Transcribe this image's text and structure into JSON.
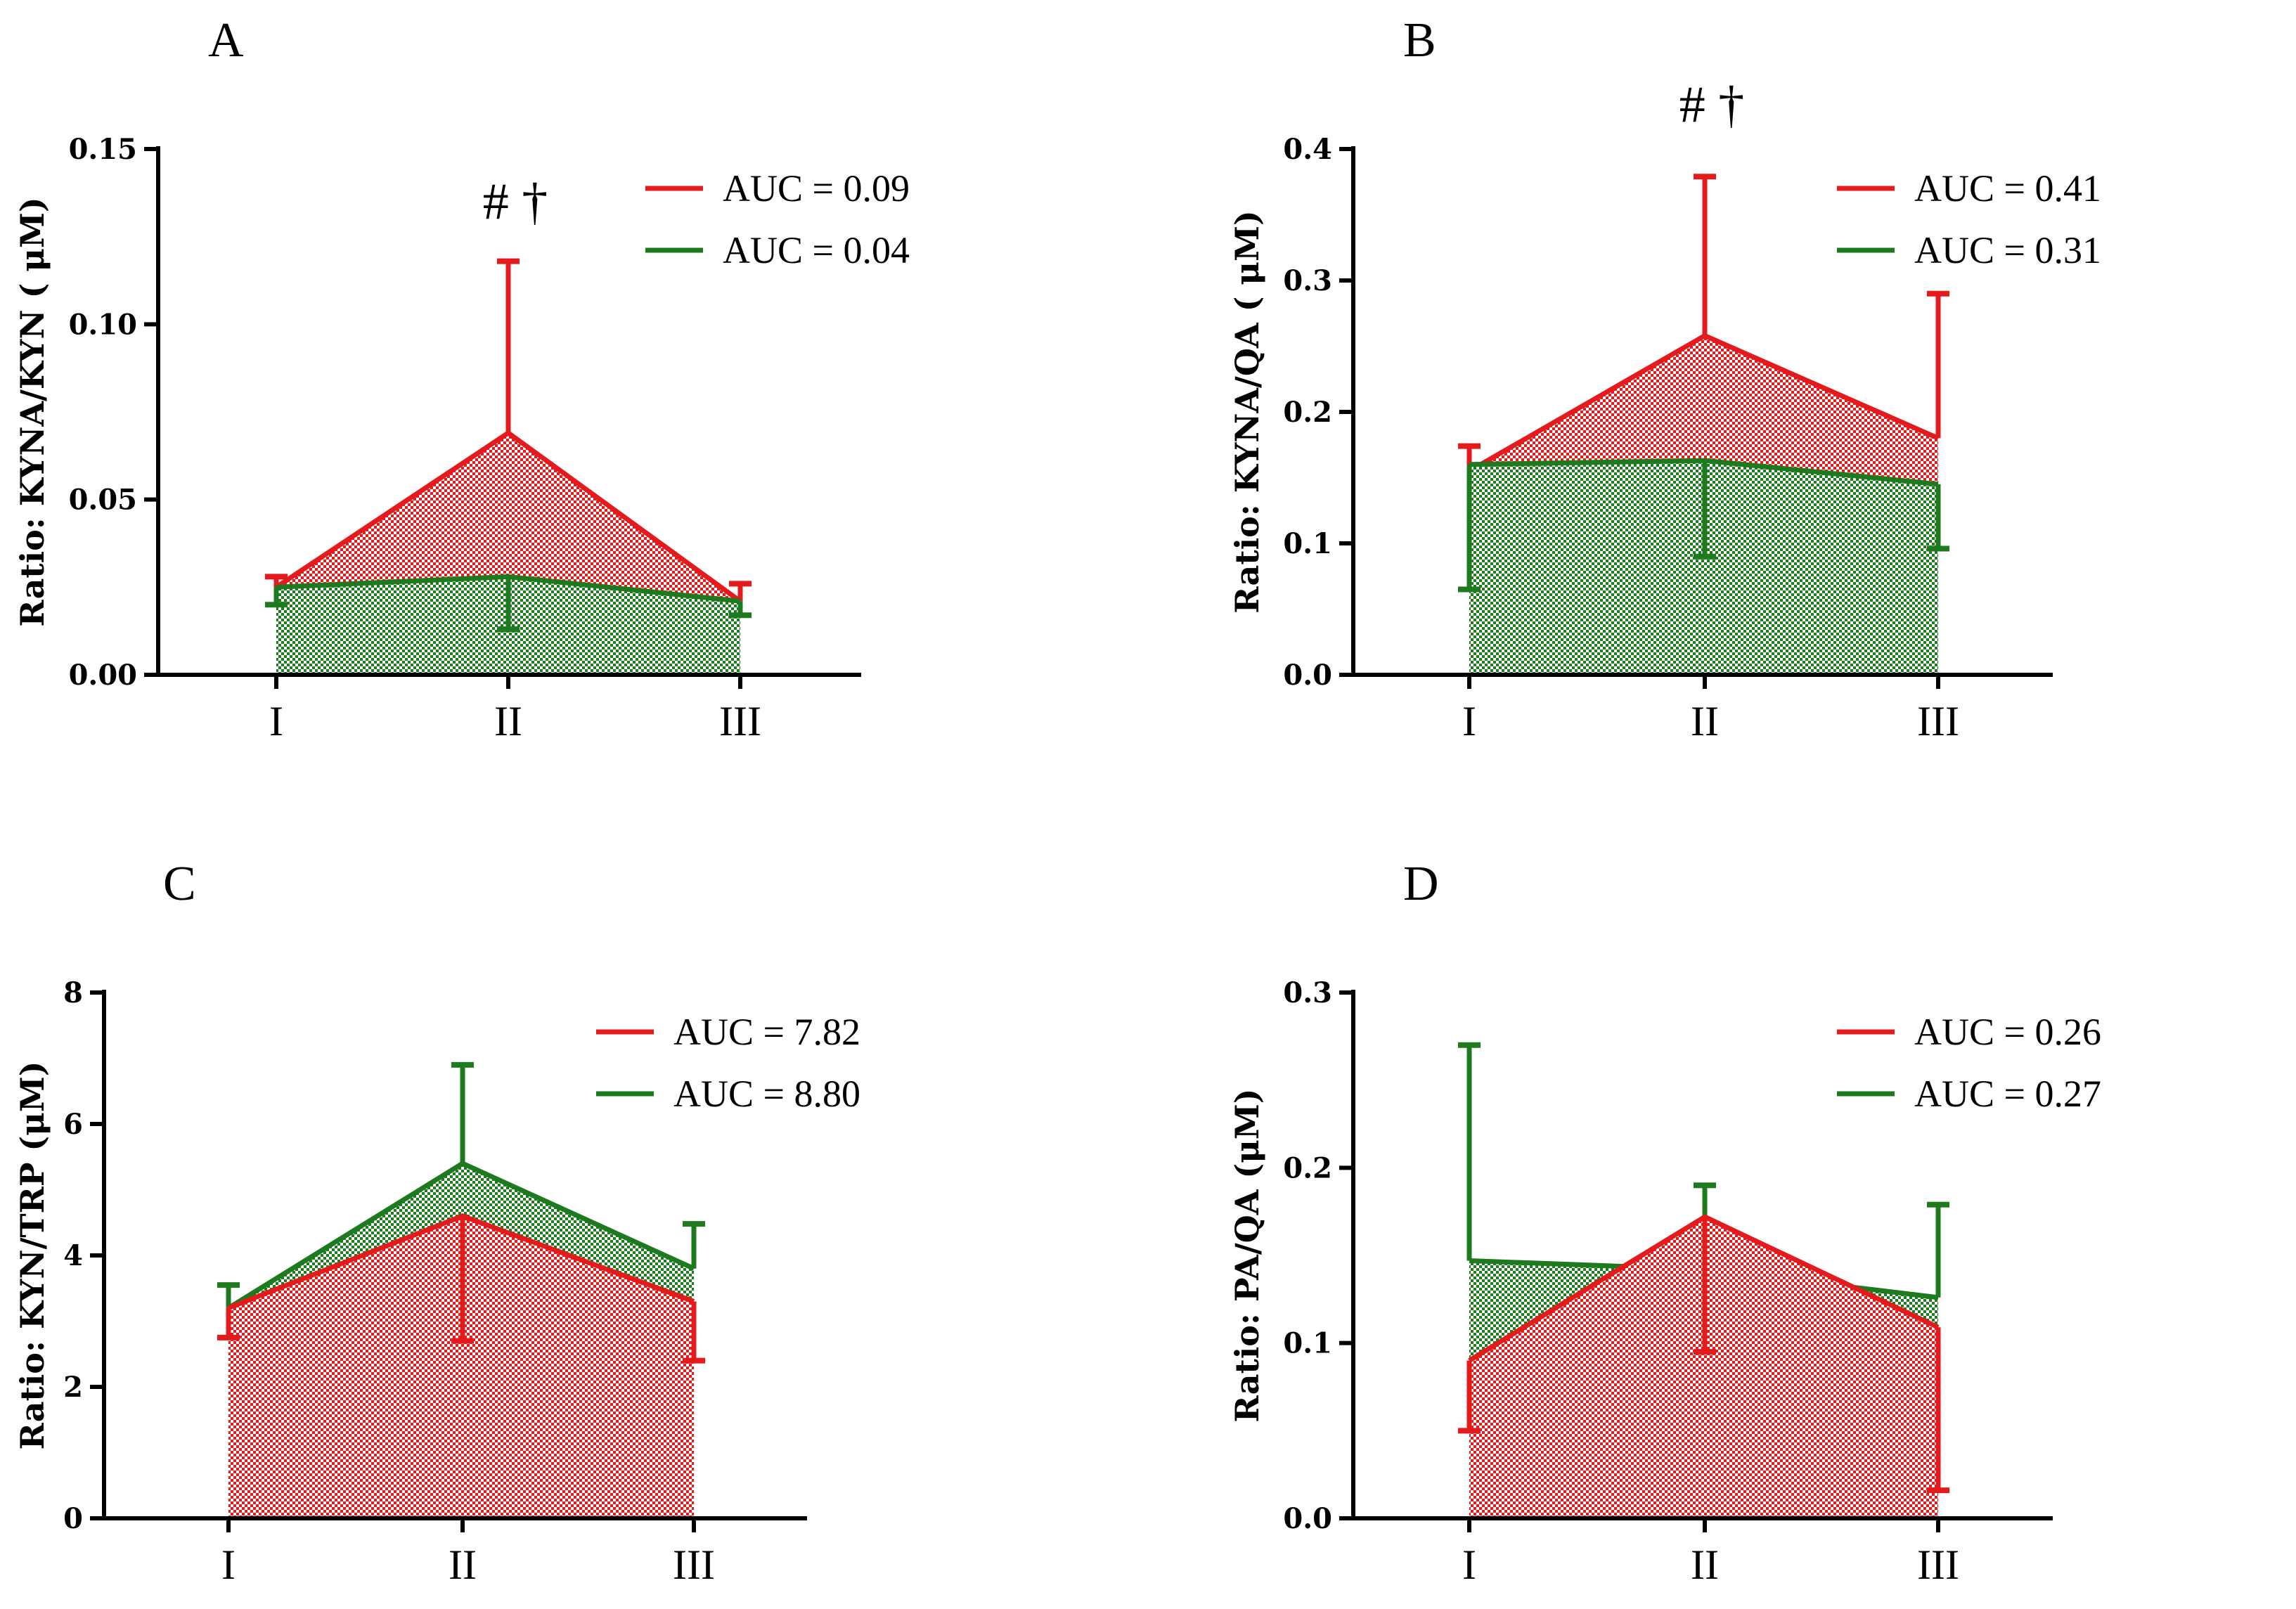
{
  "colors": {
    "red": "#e41a1c",
    "green": "#1e7a1e",
    "red_fill": "#f08080",
    "green_fill": "#4a9a4a"
  },
  "chart_data": [
    {
      "panel": "A",
      "type": "area",
      "ylabel": "Ratio: KYNA/KYN ( μM)",
      "categories": [
        "I",
        "II",
        "III"
      ],
      "ylim": [
        0,
        0.15
      ],
      "yticks": [
        0.0,
        0.05,
        0.1,
        0.15
      ],
      "ytick_labels": [
        "0.00",
        "0.05",
        "0.10",
        "0.15"
      ],
      "series": [
        {
          "name": "AUC = 0.09",
          "color": "red",
          "values": [
            0.025,
            0.069,
            0.021
          ],
          "error_high": [
            0.028,
            0.118,
            0.026
          ],
          "error_low": [
            null,
            null,
            null
          ]
        },
        {
          "name": "AUC = 0.04",
          "color": "green",
          "values": [
            0.025,
            0.028,
            0.021
          ],
          "error_high": [
            null,
            null,
            null
          ],
          "error_low": [
            0.02,
            0.013,
            0.017
          ]
        }
      ],
      "front": "green",
      "annotation": "# †",
      "annotation_at": 1
    },
    {
      "panel": "B",
      "type": "area",
      "ylabel": "Ratio: KYNA/QA ( μM)",
      "categories": [
        "I",
        "II",
        "III"
      ],
      "ylim": [
        0,
        0.4
      ],
      "yticks": [
        0.0,
        0.1,
        0.2,
        0.3,
        0.4
      ],
      "ytick_labels": [
        "0.0",
        "0.1",
        "0.2",
        "0.3",
        "0.4"
      ],
      "series": [
        {
          "name": "AUC = 0.41",
          "color": "red",
          "values": [
            0.155,
            0.258,
            0.18
          ],
          "error_high": [
            0.174,
            0.379,
            0.29
          ],
          "error_low": [
            null,
            null,
            null
          ]
        },
        {
          "name": "AUC = 0.31",
          "color": "green",
          "values": [
            0.16,
            0.163,
            0.145
          ],
          "error_high": [
            null,
            null,
            null
          ],
          "error_low": [
            0.065,
            0.09,
            0.096
          ]
        }
      ],
      "front": "green",
      "annotation": "# †",
      "annotation_at": 1
    },
    {
      "panel": "C",
      "type": "area",
      "ylabel": "Ratio: KYN/TRP (μM)",
      "categories": [
        "I",
        "II",
        "III"
      ],
      "ylim": [
        0,
        8
      ],
      "yticks": [
        0,
        2,
        4,
        6,
        8
      ],
      "ytick_labels": [
        "0",
        "2",
        "4",
        "6",
        "8"
      ],
      "series": [
        {
          "name": "AUC = 7.82",
          "color": "red",
          "values": [
            3.2,
            4.6,
            3.3
          ],
          "error_high": [
            null,
            null,
            null
          ],
          "error_low": [
            2.75,
            2.7,
            2.4
          ]
        },
        {
          "name": "AUC = 8.80",
          "color": "green",
          "values": [
            3.2,
            5.4,
            3.8
          ],
          "error_high": [
            3.55,
            6.9,
            4.48
          ],
          "error_low": [
            null,
            null,
            null
          ]
        }
      ],
      "front": "red",
      "annotation": "",
      "annotation_at": 1
    },
    {
      "panel": "D",
      "type": "area",
      "ylabel": "Ratio: PA/QA (μM)",
      "categories": [
        "I",
        "II",
        "III"
      ],
      "ylim": [
        0,
        0.3
      ],
      "yticks": [
        0.0,
        0.1,
        0.2,
        0.3
      ],
      "ytick_labels": [
        "0.0",
        "0.1",
        "0.2",
        "0.3"
      ],
      "series": [
        {
          "name": "AUC = 0.26",
          "color": "red",
          "values": [
            0.09,
            0.172,
            0.109
          ],
          "error_high": [
            null,
            null,
            null
          ],
          "error_low": [
            0.05,
            0.095,
            0.016
          ]
        },
        {
          "name": "AUC = 0.27",
          "color": "green",
          "values": [
            0.147,
            0.142,
            0.126
          ],
          "error_high": [
            0.27,
            0.19,
            0.179
          ],
          "error_low": [
            null,
            null,
            null
          ]
        }
      ],
      "front": "red",
      "annotation": "",
      "annotation_at": 1
    }
  ]
}
